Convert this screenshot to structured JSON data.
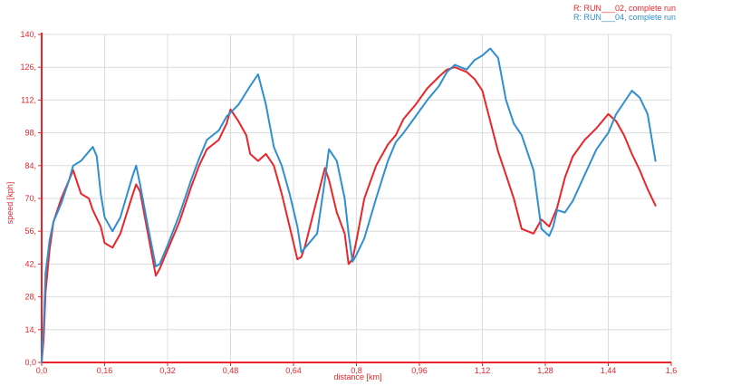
{
  "chart_data": {
    "type": "line",
    "title": "",
    "xlabel": "distance [km]",
    "ylabel": "speed [kph]",
    "xlim": [
      0,
      1.6
    ],
    "ylim": [
      0,
      140
    ],
    "x_ticks": [
      "0,0",
      "0,16",
      "0,32",
      "0,48",
      "0,64",
      "0,8",
      "0,96",
      "1,12",
      "1,28",
      "1,44",
      "1,6"
    ],
    "y_ticks": [
      "0,0",
      "14,",
      "28,",
      "42,",
      "56,",
      "70,",
      "84,",
      "98,",
      "112,",
      "126,",
      "140,"
    ],
    "grid": true,
    "legend_position": "top-right",
    "series": [
      {
        "name": "R: RUN___02, complete run",
        "color": "#e8262b",
        "x": [
          0,
          0.005,
          0.01,
          0.02,
          0.03,
          0.05,
          0.07,
          0.08,
          0.1,
          0.12,
          0.13,
          0.15,
          0.16,
          0.18,
          0.2,
          0.23,
          0.24,
          0.25,
          0.27,
          0.29,
          0.3,
          0.32,
          0.35,
          0.38,
          0.4,
          0.42,
          0.45,
          0.47,
          0.48,
          0.5,
          0.52,
          0.53,
          0.55,
          0.57,
          0.59,
          0.61,
          0.63,
          0.65,
          0.66,
          0.67,
          0.7,
          0.72,
          0.73,
          0.75,
          0.77,
          0.78,
          0.79,
          0.8,
          0.82,
          0.85,
          0.88,
          0.9,
          0.92,
          0.95,
          0.98,
          1.01,
          1.03,
          1.05,
          1.08,
          1.1,
          1.12,
          1.14,
          1.16,
          1.18,
          1.2,
          1.22,
          1.25,
          1.27,
          1.29,
          1.31,
          1.33,
          1.35,
          1.38,
          1.41,
          1.44,
          1.46,
          1.48,
          1.5,
          1.52,
          1.54,
          1.56
        ],
        "values": [
          0,
          10,
          30,
          48,
          60,
          70,
          78,
          82,
          72,
          70,
          65,
          58,
          51,
          49,
          55,
          71,
          76,
          73,
          55,
          37,
          40,
          48,
          60,
          75,
          84,
          91,
          95,
          102,
          108,
          103,
          97,
          89,
          86,
          89,
          84,
          72,
          58,
          44,
          45,
          50,
          70,
          83,
          78,
          64,
          55,
          42,
          44,
          52,
          70,
          84,
          93,
          97,
          104,
          110,
          117,
          122,
          125,
          126,
          124,
          121,
          116,
          103,
          90,
          80,
          70,
          57,
          55,
          61,
          58,
          66,
          79,
          88,
          95,
          100,
          106,
          103,
          97,
          89,
          82,
          74,
          67
        ]
      },
      {
        "name": "R: RUN___04, complete run",
        "color": "#2f8fd0",
        "x": [
          0,
          0.005,
          0.01,
          0.02,
          0.03,
          0.05,
          0.07,
          0.08,
          0.1,
          0.12,
          0.13,
          0.14,
          0.15,
          0.16,
          0.18,
          0.2,
          0.23,
          0.24,
          0.25,
          0.27,
          0.29,
          0.3,
          0.32,
          0.35,
          0.38,
          0.4,
          0.42,
          0.45,
          0.47,
          0.5,
          0.53,
          0.55,
          0.57,
          0.59,
          0.61,
          0.63,
          0.65,
          0.66,
          0.67,
          0.7,
          0.72,
          0.73,
          0.75,
          0.77,
          0.78,
          0.79,
          0.8,
          0.82,
          0.85,
          0.88,
          0.9,
          0.92,
          0.95,
          0.98,
          1.01,
          1.03,
          1.05,
          1.08,
          1.1,
          1.12,
          1.14,
          1.16,
          1.18,
          1.2,
          1.22,
          1.25,
          1.27,
          1.29,
          1.3,
          1.31,
          1.33,
          1.35,
          1.38,
          1.41,
          1.44,
          1.46,
          1.48,
          1.5,
          1.52,
          1.54,
          1.56
        ],
        "values": [
          0,
          15,
          38,
          52,
          60,
          68,
          78,
          84,
          86,
          90,
          92,
          88,
          72,
          62,
          56,
          62,
          79,
          84,
          76,
          58,
          41,
          42,
          50,
          63,
          78,
          87,
          95,
          99,
          105,
          110,
          118,
          123,
          110,
          92,
          84,
          72,
          58,
          47,
          49,
          55,
          78,
          91,
          86,
          70,
          55,
          43,
          46,
          53,
          70,
          86,
          94,
          98,
          105,
          112,
          118,
          124,
          127,
          125,
          129,
          131,
          134,
          130,
          112,
          102,
          97,
          82,
          57,
          54,
          58,
          65,
          64,
          69,
          80,
          91,
          98,
          106,
          111,
          116,
          113,
          106,
          86
        ]
      }
    ]
  }
}
